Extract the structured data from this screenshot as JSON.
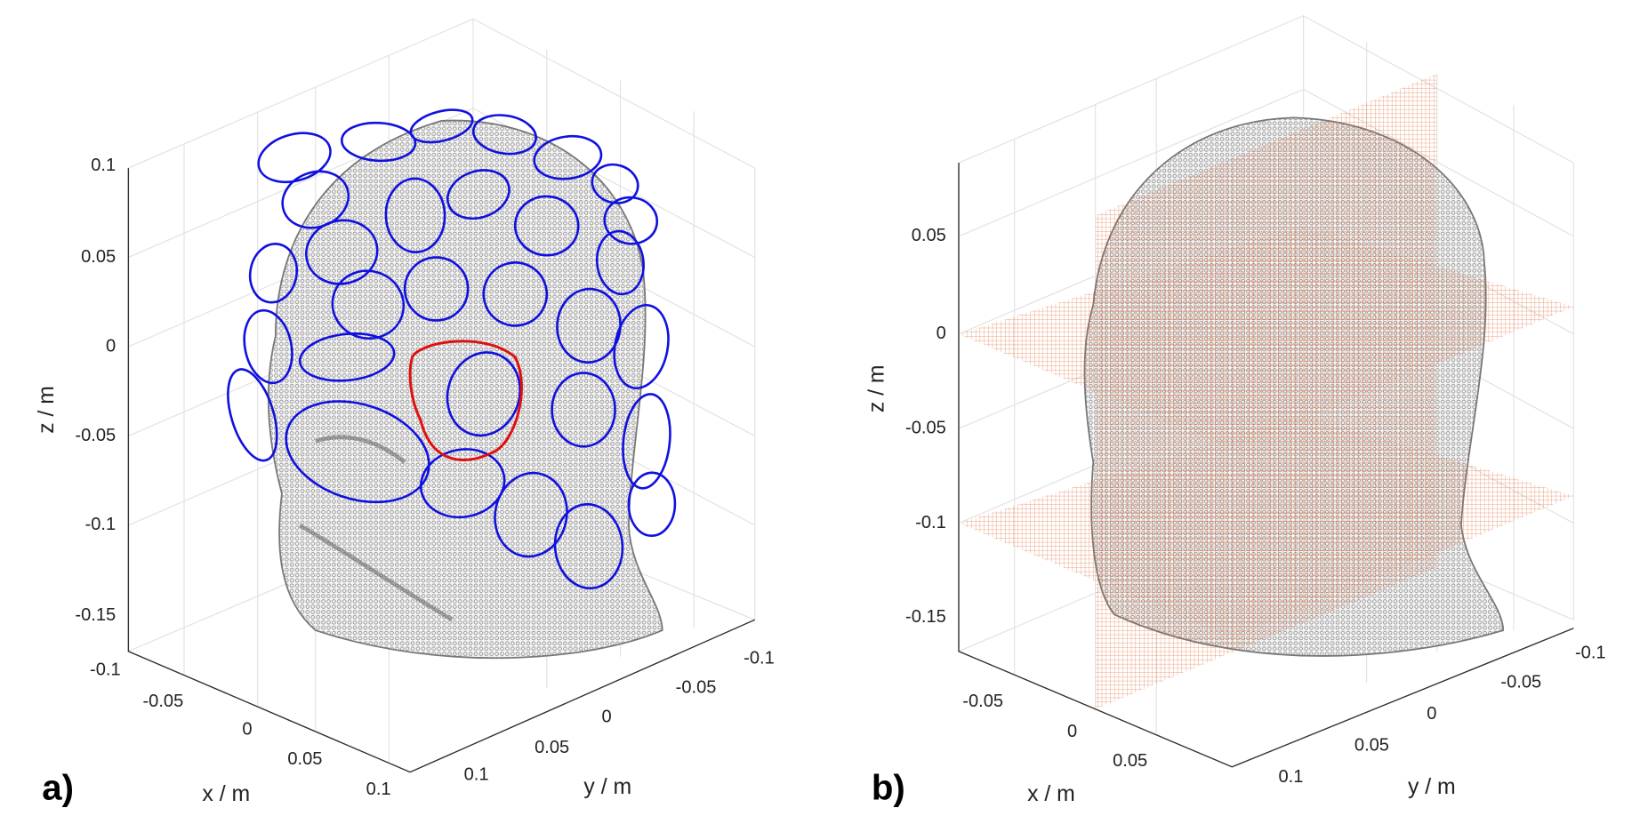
{
  "panels": [
    {
      "label": "a)",
      "axes": {
        "z": {
          "label": "z / m",
          "ticks": [
            "0.1",
            "0.05",
            "0",
            "-0.05",
            "-0.1",
            "-0.15"
          ]
        },
        "x": {
          "label": "x / m",
          "ticks": [
            "-0.1",
            "-0.05",
            "0",
            "0.05",
            "0.1"
          ]
        },
        "y": {
          "label": "y / m",
          "ticks": [
            "0.1",
            "0.05",
            "0",
            "-0.05",
            "-0.1"
          ]
        }
      }
    },
    {
      "label": "b)",
      "axes": {
        "z": {
          "label": "z / m",
          "ticks": [
            "0.05",
            "0",
            "-0.05",
            "-0.1",
            "-0.15"
          ]
        },
        "x": {
          "label": "x / m",
          "ticks": [
            "-0.05",
            "0",
            "0.05"
          ]
        },
        "y": {
          "label": "y / m",
          "ticks": [
            "0.1",
            "0.05",
            "0",
            "-0.05",
            "-0.1"
          ]
        }
      }
    }
  ]
}
